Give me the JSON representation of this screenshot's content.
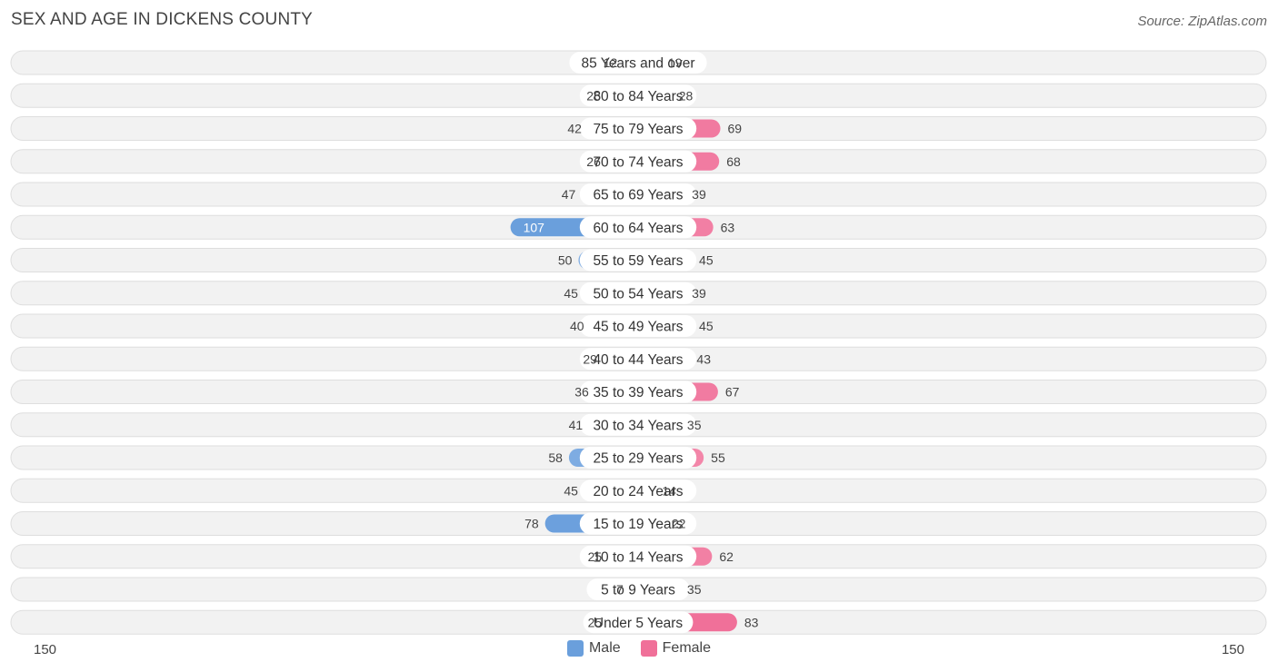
{
  "header": {
    "title": "SEX AND AGE IN DICKENS COUNTY",
    "source": "Source: ZipAtlas.com"
  },
  "legend": {
    "male_label": "Male",
    "female_label": "Female"
  },
  "axis": {
    "left_label": "150",
    "right_label": "150"
  },
  "colors": {
    "male": "#6a9fdc",
    "female": "#f07099",
    "row_bg": "#f2f2f2"
  },
  "chart_data": {
    "type": "bar",
    "orientation": "horizontal-diverging",
    "title": "SEX AND AGE IN DICKENS COUNTY",
    "xlim": [
      -150,
      150
    ],
    "categories": [
      "85 Years and over",
      "80 to 84 Years",
      "75 to 79 Years",
      "70 to 74 Years",
      "65 to 69 Years",
      "60 to 64 Years",
      "55 to 59 Years",
      "50 to 54 Years",
      "45 to 49 Years",
      "40 to 44 Years",
      "35 to 39 Years",
      "30 to 34 Years",
      "25 to 29 Years",
      "20 to 24 Years",
      "15 to 19 Years",
      "10 to 14 Years",
      "5 to 9 Years",
      "Under 5 Years"
    ],
    "series": [
      {
        "name": "Male",
        "values": [
          12,
          26,
          42,
          26,
          47,
          107,
          50,
          45,
          40,
          29,
          36,
          41,
          58,
          45,
          78,
          25,
          7,
          25
        ]
      },
      {
        "name": "Female",
        "values": [
          19,
          28,
          69,
          68,
          39,
          63,
          45,
          39,
          45,
          43,
          67,
          35,
          55,
          14,
          22,
          62,
          35,
          83
        ]
      }
    ]
  }
}
